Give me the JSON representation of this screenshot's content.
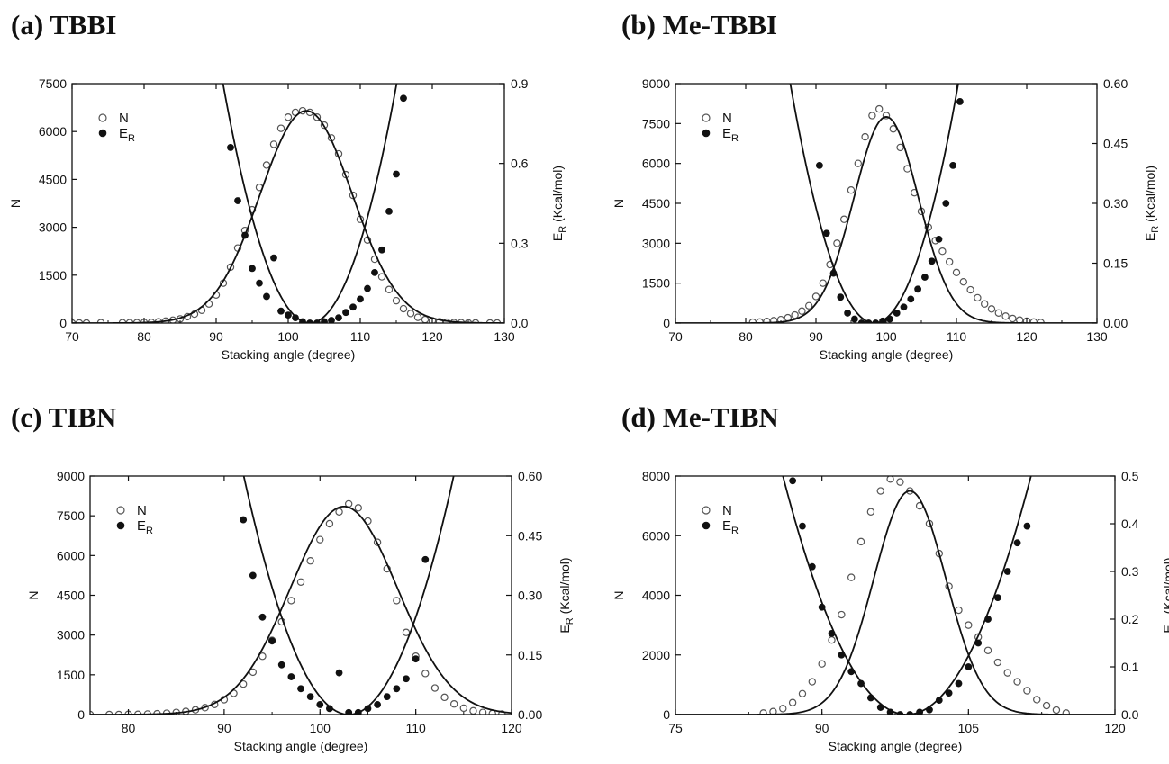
{
  "colors": {
    "ink": "#111111",
    "background": "#ffffff"
  },
  "chart_data": [
    {
      "type": "scatter",
      "panel_label": "(a)   TBBI",
      "xlabel": "Stacking angle (degree)",
      "ylabel": "N",
      "y2label_main": "E",
      "y2label_sub": "R",
      "y2label_tail": " (Kcal/mol)",
      "xlim": [
        70,
        130
      ],
      "xticks": [
        70,
        80,
        90,
        100,
        110,
        120,
        130
      ],
      "ylim": [
        0,
        7500
      ],
      "yticks": [
        0,
        1500,
        3000,
        4500,
        6000,
        7500
      ],
      "y2lim": [
        0,
        0.9
      ],
      "y2ticks": [
        "0.0",
        "0.3",
        "0.6",
        "0.9"
      ],
      "legend": [
        {
          "marker": "open-circle",
          "label": "N"
        },
        {
          "marker": "filled-circle",
          "label": "E",
          "sub": "R"
        }
      ],
      "legend_position": "top-left",
      "series": [
        {
          "name": "N",
          "axis": "left",
          "marker": "open-circle",
          "x": [
            70,
            71,
            72,
            74,
            77,
            78,
            79,
            80,
            81,
            82,
            83,
            84,
            85,
            86,
            87,
            88,
            89,
            90,
            91,
            92,
            93,
            94,
            95,
            96,
            97,
            98,
            99,
            100,
            101,
            102,
            103,
            104,
            105,
            106,
            107,
            108,
            109,
            110,
            111,
            112,
            113,
            114,
            115,
            116,
            117,
            118,
            119,
            120,
            121,
            122,
            123,
            124,
            125,
            126,
            128,
            129
          ],
          "y": [
            0,
            0,
            0,
            10,
            10,
            10,
            10,
            20,
            20,
            40,
            60,
            90,
            130,
            200,
            280,
            400,
            600,
            880,
            1250,
            1750,
            2350,
            2900,
            3550,
            4250,
            4950,
            5600,
            6100,
            6450,
            6600,
            6650,
            6600,
            6450,
            6200,
            5800,
            5300,
            4650,
            4000,
            3250,
            2600,
            2000,
            1450,
            1050,
            700,
            450,
            300,
            180,
            110,
            70,
            40,
            25,
            15,
            10,
            5,
            5,
            0,
            0
          ]
        },
        {
          "name": "N fit",
          "axis": "left",
          "marker": "line",
          "fit": "gauss",
          "A": 6650,
          "mu": 102.5,
          "sigma": 6.4
        },
        {
          "name": "E_R",
          "axis": "right",
          "marker": "filled-circle",
          "x": [
            92,
            93,
            94,
            95,
            96,
            97,
            98,
            99,
            100,
            101,
            102,
            103,
            104,
            105,
            106,
            107,
            108,
            109,
            110,
            111,
            112,
            113,
            114,
            115,
            116
          ],
          "y": [
            0.66,
            0.46,
            0.33,
            0.205,
            0.15,
            0.1,
            0.245,
            0.045,
            0.03,
            0.02,
            0.005,
            0.0,
            0.0,
            0.005,
            0.01,
            0.02,
            0.04,
            0.06,
            0.09,
            0.13,
            0.19,
            0.275,
            0.42,
            0.56,
            0.845
          ]
        },
        {
          "name": "E_R fit",
          "axis": "right",
          "marker": "line",
          "fit": "parabola",
          "x0": 103,
          "a": 0.0062
        }
      ]
    },
    {
      "type": "scatter",
      "panel_label": "(b) Me-TBBI",
      "xlabel": "Stacking angle (degree)",
      "ylabel": "N",
      "y2label_main": "E",
      "y2label_sub": "R",
      "y2label_tail": " (Kcal/mol)",
      "xlim": [
        70,
        130
      ],
      "xticks": [
        70,
        80,
        90,
        100,
        110,
        120,
        130
      ],
      "ylim": [
        0,
        9000
      ],
      "yticks": [
        0,
        1500,
        3000,
        4500,
        6000,
        7500,
        9000
      ],
      "y2lim": [
        0,
        0.6
      ],
      "y2ticks": [
        "0.00",
        "0.15",
        "0.30",
        "0.45",
        "0.60"
      ],
      "legend": [
        {
          "marker": "open-circle",
          "label": "N"
        },
        {
          "marker": "filled-circle",
          "label": "E",
          "sub": "R"
        }
      ],
      "legend_position": "top-left",
      "series": [
        {
          "name": "N",
          "axis": "left",
          "marker": "open-circle",
          "x": [
            81,
            82,
            83,
            84,
            85,
            86,
            87,
            88,
            89,
            90,
            91,
            92,
            93,
            94,
            95,
            96,
            97,
            98,
            99,
            100,
            101,
            102,
            103,
            104,
            105,
            106,
            107,
            108,
            109,
            110,
            111,
            112,
            113,
            114,
            115,
            116,
            117,
            118,
            119,
            120,
            121,
            122
          ],
          "y": [
            30,
            40,
            60,
            90,
            130,
            200,
            300,
            450,
            650,
            1000,
            1500,
            2200,
            3000,
            3900,
            5000,
            6000,
            7000,
            7800,
            8050,
            7800,
            7300,
            6600,
            5800,
            4900,
            4200,
            3600,
            3100,
            2700,
            2300,
            1900,
            1550,
            1250,
            950,
            720,
            530,
            380,
            260,
            170,
            110,
            70,
            40,
            20
          ]
        },
        {
          "name": "N fit",
          "axis": "left",
          "marker": "line",
          "fit": "gauss",
          "A": 7750,
          "mu": 100,
          "sigma": 4.6
        },
        {
          "name": "E_R",
          "axis": "right",
          "marker": "filled-circle",
          "x": [
            90.5,
            91.5,
            92.5,
            93.5,
            94.5,
            95.5,
            96.5,
            97.5,
            98.5,
            99.5,
            100.5,
            101.5,
            102.5,
            103.5,
            104.5,
            105.5,
            106.5,
            107.5,
            108.5,
            109.5,
            110.5
          ],
          "y": [
            0.395,
            0.225,
            0.125,
            0.065,
            0.025,
            0.01,
            0.0,
            0.0,
            0.0,
            0.005,
            0.01,
            0.025,
            0.04,
            0.06,
            0.085,
            0.115,
            0.155,
            0.21,
            0.3,
            0.395,
            0.555
          ]
        },
        {
          "name": "E_R fit",
          "axis": "right",
          "marker": "line",
          "fit": "parabola",
          "x0": 98.3,
          "a": 0.0042
        }
      ]
    },
    {
      "type": "scatter",
      "panel_label": "(c) TIBN",
      "xlabel": "Stacking angle (degree)",
      "ylabel": "N",
      "y2label_main": "E",
      "y2label_sub": "R",
      "y2label_tail": " (Kcal/mol)",
      "xlim": [
        76,
        120
      ],
      "xticks": [
        80,
        90,
        100,
        110,
        120
      ],
      "ylim": [
        0,
        9000
      ],
      "yticks": [
        0,
        1500,
        3000,
        4500,
        6000,
        7500,
        9000
      ],
      "y2lim": [
        0,
        0.6
      ],
      "y2ticks": [
        "0.00",
        "0.15",
        "0.30",
        "0.45",
        "0.60"
      ],
      "legend": [
        {
          "marker": "open-circle",
          "label": "N"
        },
        {
          "marker": "filled-circle",
          "label": "E",
          "sub": "R"
        }
      ],
      "legend_position": "top-left",
      "series": [
        {
          "name": "N",
          "axis": "left",
          "marker": "open-circle",
          "x": [
            76,
            78,
            79,
            80,
            81,
            82,
            83,
            84,
            85,
            86,
            87,
            88,
            89,
            90,
            91,
            92,
            93,
            94,
            95,
            96,
            97,
            98,
            99,
            100,
            101,
            102,
            103,
            104,
            105,
            106,
            107,
            108,
            109,
            110,
            111,
            112,
            113,
            114,
            115,
            116,
            117,
            118,
            119
          ],
          "y": [
            0,
            0,
            0,
            10,
            10,
            20,
            30,
            50,
            80,
            120,
            180,
            260,
            380,
            560,
            800,
            1150,
            1600,
            2200,
            2800,
            3500,
            4300,
            5000,
            5800,
            6600,
            7200,
            7650,
            7950,
            7800,
            7300,
            6500,
            5500,
            4300,
            3100,
            2200,
            1550,
            1000,
            650,
            400,
            240,
            140,
            80,
            40,
            20
          ]
        },
        {
          "name": "N fit",
          "axis": "left",
          "marker": "line",
          "fit": "gauss",
          "A": 7850,
          "mu": 102.5,
          "sigma": 5.6
        },
        {
          "name": "E_R",
          "axis": "right",
          "marker": "filled-circle",
          "x": [
            92,
            93,
            94,
            95,
            96,
            97,
            98,
            99,
            100,
            101,
            102,
            103,
            104,
            105,
            106,
            107,
            108,
            109,
            110,
            111
          ],
          "y": [
            0.49,
            0.35,
            0.245,
            0.185,
            0.125,
            0.095,
            0.065,
            0.045,
            0.025,
            0.015,
            0.105,
            0.005,
            0.005,
            0.015,
            0.025,
            0.045,
            0.065,
            0.09,
            0.14,
            0.39
          ]
        },
        {
          "name": "E_R fit",
          "axis": "right",
          "marker": "line",
          "fit": "parabola",
          "x0": 103,
          "a": 0.005
        }
      ]
    },
    {
      "type": "scatter",
      "panel_label": "(d) Me-TIBN",
      "xlabel": "Stacking angle (degree)",
      "ylabel": "N",
      "y2label_main": "E",
      "y2label_sub": "R",
      "y2label_tail": " (Kcal/mol)",
      "xlim": [
        75,
        120
      ],
      "xticks": [
        75,
        90,
        105,
        120
      ],
      "ylim": [
        0,
        8000
      ],
      "yticks": [
        0,
        2000,
        4000,
        6000,
        8000
      ],
      "y2lim": [
        0,
        0.5
      ],
      "y2ticks": [
        "0.0",
        "0.1",
        "0.2",
        "0.3",
        "0.4",
        "0.5"
      ],
      "legend": [
        {
          "marker": "open-circle",
          "label": "N"
        },
        {
          "marker": "filled-circle",
          "label": "E",
          "sub": "R"
        }
      ],
      "legend_position": "top-left",
      "series": [
        {
          "name": "N",
          "axis": "left",
          "marker": "open-circle",
          "x": [
            84,
            85,
            86,
            87,
            88,
            89,
            90,
            91,
            92,
            93,
            94,
            95,
            96,
            97,
            98,
            99,
            100,
            101,
            102,
            103,
            104,
            105,
            106,
            107,
            108,
            109,
            110,
            111,
            112,
            113,
            114,
            115
          ],
          "y": [
            50,
            100,
            200,
            400,
            700,
            1100,
            1700,
            2500,
            3350,
            4600,
            5800,
            6800,
            7500,
            7900,
            7800,
            7500,
            7000,
            6400,
            5400,
            4300,
            3500,
            3000,
            2600,
            2150,
            1750,
            1400,
            1100,
            800,
            500,
            300,
            150,
            50
          ]
        },
        {
          "name": "N fit",
          "axis": "left",
          "marker": "line",
          "fit": "gauss",
          "A": 7500,
          "mu": 99,
          "sigma": 3.7
        },
        {
          "name": "E_R",
          "axis": "right",
          "marker": "filled-circle",
          "x": [
            87,
            88,
            89,
            90,
            91,
            92,
            93,
            94,
            95,
            96,
            97,
            98,
            99,
            100,
            101,
            102,
            103,
            104,
            105,
            106,
            107,
            108,
            109,
            110,
            111
          ],
          "y": [
            0.49,
            0.395,
            0.31,
            0.225,
            0.17,
            0.125,
            0.09,
            0.065,
            0.035,
            0.015,
            0.005,
            0.0,
            0.0,
            0.005,
            0.01,
            0.03,
            0.045,
            0.065,
            0.1,
            0.15,
            0.2,
            0.245,
            0.3,
            0.36,
            0.395
          ]
        },
        {
          "name": "E_R fit",
          "axis": "right",
          "marker": "line",
          "fit": "parabola",
          "x0": 98.7,
          "a": 0.0031
        }
      ]
    }
  ]
}
